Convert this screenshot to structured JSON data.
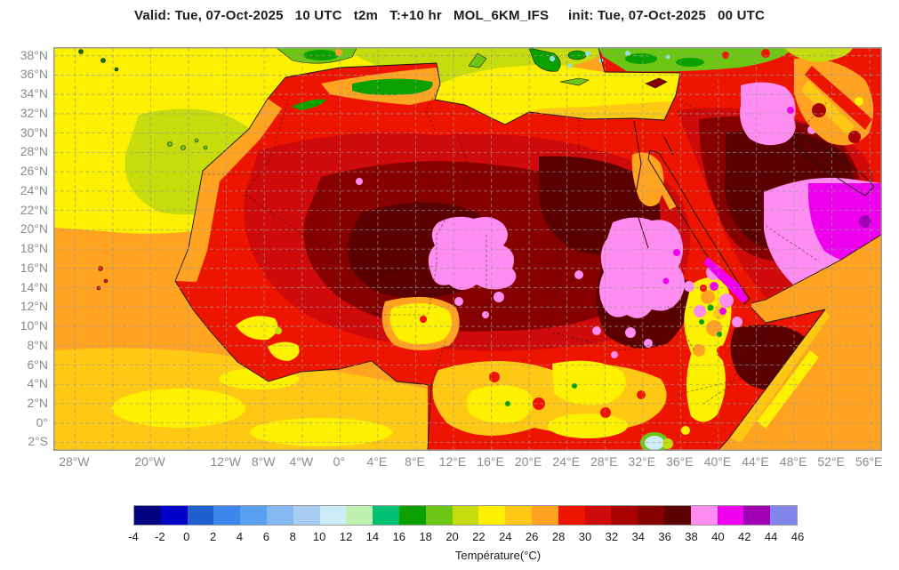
{
  "title": {
    "text": "Valid: Tue, 07-Oct-2025   10 UTC   t2m   T:+10 hr   MOL_6KM_IFS     init: Tue, 07-Oct-2025   00 UTC"
  },
  "map": {
    "lat_labels": [
      {
        "label": "38°N",
        "deg": 38
      },
      {
        "label": "36°N",
        "deg": 36
      },
      {
        "label": "34°N",
        "deg": 34
      },
      {
        "label": "32°N",
        "deg": 32
      },
      {
        "label": "30°N",
        "deg": 30
      },
      {
        "label": "28°N",
        "deg": 28
      },
      {
        "label": "26°N",
        "deg": 26
      },
      {
        "label": "24°N",
        "deg": 24
      },
      {
        "label": "22°N",
        "deg": 22
      },
      {
        "label": "20°N",
        "deg": 20
      },
      {
        "label": "18°N",
        "deg": 18
      },
      {
        "label": "16°N",
        "deg": 16
      },
      {
        "label": "14°N",
        "deg": 14
      },
      {
        "label": "12°N",
        "deg": 12
      },
      {
        "label": "10°N",
        "deg": 10
      },
      {
        "label": "8°N",
        "deg": 8
      },
      {
        "label": "6°N",
        "deg": 6
      },
      {
        "label": "4°N",
        "deg": 4
      },
      {
        "label": "2°N",
        "deg": 2
      },
      {
        "label": "0°",
        "deg": 0
      },
      {
        "label": "2°S",
        "deg": -2
      }
    ],
    "lon_labels": [
      {
        "label": "28°W",
        "deg": -28
      },
      {
        "label": "20°W",
        "deg": -20
      },
      {
        "label": "12°W",
        "deg": -12
      },
      {
        "label": "8°W",
        "deg": -8
      },
      {
        "label": "4°W",
        "deg": -4
      },
      {
        "label": "0°",
        "deg": 0
      },
      {
        "label": "4°E",
        "deg": 4
      },
      {
        "label": "8°E",
        "deg": 8
      },
      {
        "label": "12°E",
        "deg": 12
      },
      {
        "label": "16°E",
        "deg": 16
      },
      {
        "label": "20°E",
        "deg": 20
      },
      {
        "label": "24°E",
        "deg": 24
      },
      {
        "label": "28°E",
        "deg": 28
      },
      {
        "label": "32°E",
        "deg": 32
      },
      {
        "label": "36°E",
        "deg": 36
      },
      {
        "label": "40°E",
        "deg": 40
      },
      {
        "label": "44°E",
        "deg": 44
      },
      {
        "label": "48°E",
        "deg": 48
      },
      {
        "label": "52°E",
        "deg": 52
      },
      {
        "label": "56°E",
        "deg": 56
      }
    ]
  },
  "colorbar": {
    "label": "Température(°C)",
    "ticks": [
      "-4",
      "-2",
      "0",
      "2",
      "4",
      "6",
      "8",
      "10",
      "12",
      "14",
      "16",
      "18",
      "20",
      "22",
      "24",
      "26",
      "28",
      "30",
      "32",
      "34",
      "36",
      "38",
      "40",
      "42",
      "44",
      "46"
    ]
  },
  "palette": {
    "colors": [
      "#000080",
      "#0000C8",
      "#2060CE",
      "#3C86EC",
      "#5AA0F0",
      "#84B8F0",
      "#A8CEF4",
      "#CCECF8",
      "#BEF0B0",
      "#00C173",
      "#0AA000",
      "#6EC614",
      "#C6DC0C",
      "#FDF000",
      "#FFC814",
      "#FFA321",
      "#EE1500",
      "#CE0A0A",
      "#AA0000",
      "#860000",
      "#5A0000",
      "#FF8CF0",
      "#EE00EE",
      "#A000B4",
      "#8286EC"
    ],
    "extra": {
      "dark_green": "#067800",
      "cyan": "#8FE3DC"
    }
  },
  "colors": {
    "grid": "#9a9a9a",
    "coast": "#151515",
    "frame": "#999999",
    "axis_text": "#8c8c8c",
    "title_text": "#1c1c1c",
    "tick_text": "#1a1a1a"
  }
}
